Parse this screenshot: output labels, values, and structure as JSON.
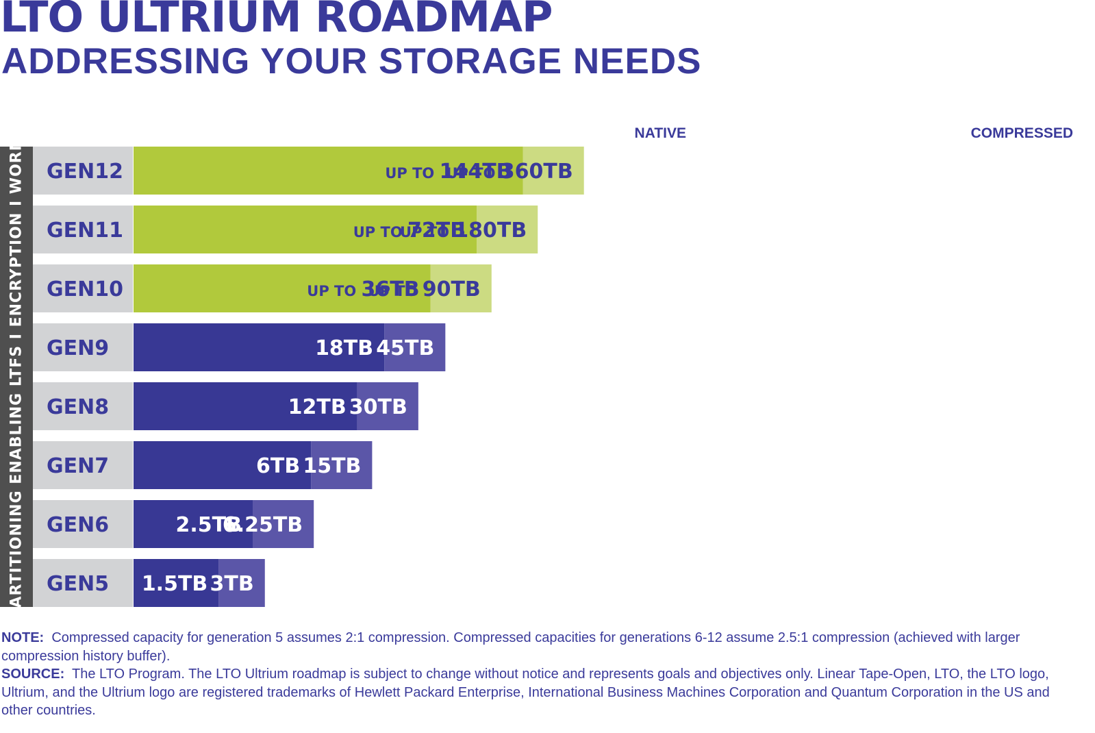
{
  "header": {
    "title": "LTO ULTRIUM ROADMAP",
    "subtitle": "ADDRESSING YOUR STORAGE NEEDS"
  },
  "side_label": "PARTITIONING ENABLING LTFS  I  ENCRYPTION  I  WORM",
  "chart_data": {
    "type": "bar",
    "orientation": "horizontal",
    "stacked": true,
    "title": "LTO ULTRIUM ROADMAP",
    "column_headers": {
      "native": "NATIVE",
      "compressed": "COMPRESSED"
    },
    "categories": [
      "GEN12",
      "GEN11",
      "GEN10",
      "GEN9",
      "GEN8",
      "GEN7",
      "GEN6",
      "GEN5"
    ],
    "series": [
      {
        "name": "Native",
        "values": [
          144,
          72,
          36,
          18,
          12,
          6,
          2.5,
          1.5
        ],
        "labels": [
          "144TB",
          "72TB",
          "36TB",
          "18TB",
          "12TB",
          "6TB",
          "2.5TB",
          "1.5TB"
        ]
      },
      {
        "name": "Compressed",
        "values": [
          360,
          180,
          90,
          45,
          30,
          15,
          6.25,
          3
        ],
        "labels": [
          "360TB",
          "180TB",
          "90TB",
          "45TB",
          "30TB",
          "15TB",
          "6.25TB",
          "3TB"
        ]
      }
    ],
    "label_prefix": "UP TO",
    "future_generations": [
      "GEN12",
      "GEN11",
      "GEN10"
    ],
    "colors": {
      "native_current": "#383894",
      "compressed_current": "#5b56a8",
      "native_future": "#b1c93c",
      "compressed_future": "#ccdb82",
      "gen_cell": "#d2d3d5",
      "gen_text": "#3a3a9a",
      "label_future": "#3a3a9a",
      "label_current": "#ffffff"
    }
  },
  "footer": {
    "note_label": "NOTE:",
    "note_text": "Compressed capacity for generation 5 assumes 2:1 compression. Compressed capacities for generations 6-12 assume 2.5:1 compression (achieved with larger compression history buffer).",
    "source_label": "SOURCE:",
    "source_text": "The LTO Program. The LTO Ultrium roadmap is subject to change without notice and represents goals and objectives only. Linear Tape-Open, LTO, the LTO logo, Ultrium, and the Ultrium logo are registered trademarks of Hewlett Packard Enterprise, International Business Machines Corporation and Quantum Corporation in the US and other countries."
  }
}
